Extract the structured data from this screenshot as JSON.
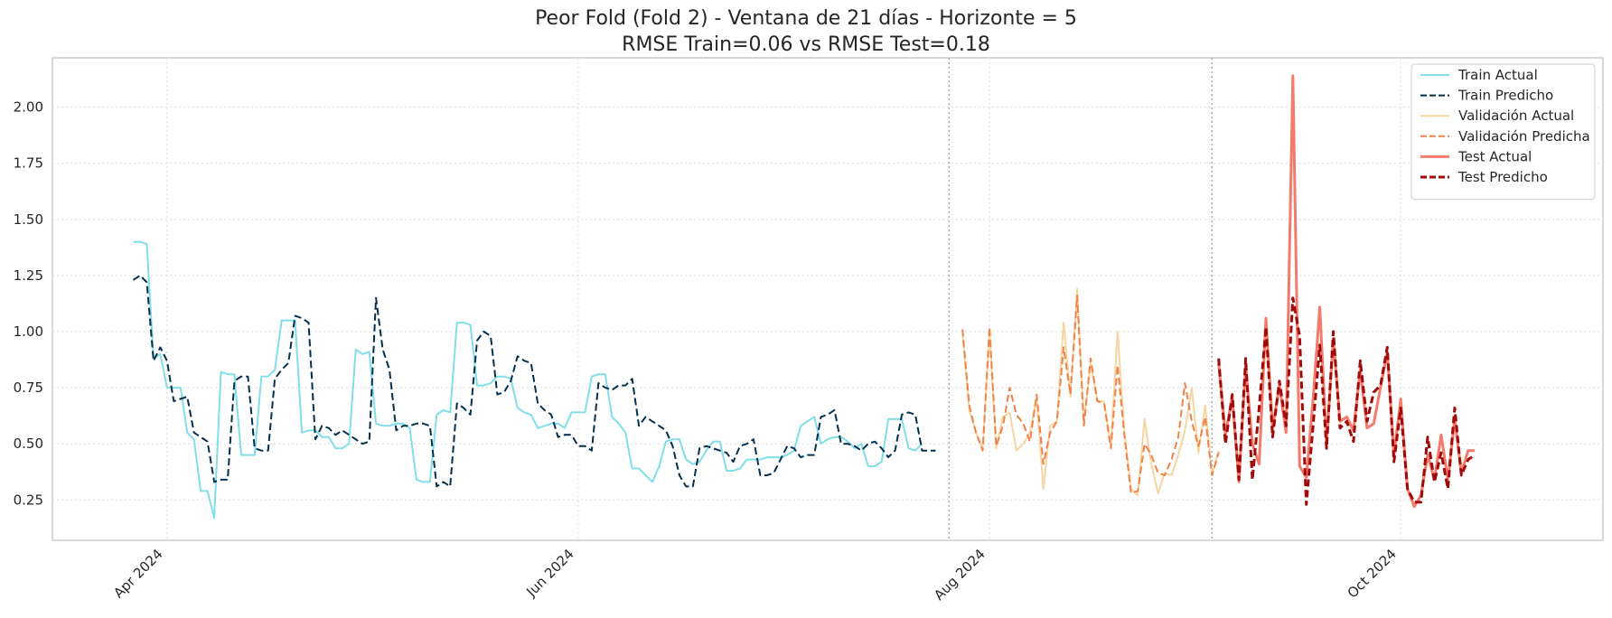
{
  "chart_data": {
    "type": "line",
    "title": "Peor Fold (Fold 2) - Ventana de 21 días - Horizonte = 5",
    "subtitle": "RMSE Train=0.06 vs RMSE Test=0.18",
    "xlabel": "",
    "ylabel": "",
    "x_type": "date",
    "xlim": [
      "2024-03-15",
      "2024-10-31"
    ],
    "ylim": [
      0.07,
      2.22
    ],
    "yticks": [
      0.25,
      0.5,
      0.75,
      1.0,
      1.25,
      1.5,
      1.75,
      2.0
    ],
    "xticks": [
      {
        "date": "2024-04-01",
        "label": "Apr 2024"
      },
      {
        "date": "2024-06-01",
        "label": "Jun 2024"
      },
      {
        "date": "2024-08-01",
        "label": "Aug 2024"
      },
      {
        "date": "2024-10-01",
        "label": "Oct 2024"
      }
    ],
    "split_lines": [
      "2024-07-26",
      "2024-09-03"
    ],
    "grid": true,
    "legend_position": "top-right",
    "series": [
      {
        "name": "Train Actual",
        "color": "#80deea",
        "dash": "solid",
        "width": 2,
        "start": "2024-03-27",
        "values": [
          1.4,
          1.4,
          1.39,
          0.88,
          0.9,
          0.75,
          0.75,
          0.75,
          0.55,
          0.52,
          0.29,
          0.29,
          0.17,
          0.82,
          0.81,
          0.81,
          0.45,
          0.45,
          0.45,
          0.8,
          0.8,
          0.83,
          1.05,
          1.05,
          1.05,
          0.55,
          0.56,
          0.56,
          0.53,
          0.53,
          0.48,
          0.48,
          0.5,
          0.92,
          0.9,
          0.91,
          0.59,
          0.58,
          0.58,
          0.59,
          0.59,
          0.57,
          0.34,
          0.33,
          0.33,
          0.63,
          0.65,
          0.64,
          1.04,
          1.04,
          1.03,
          0.76,
          0.76,
          0.77,
          0.8,
          0.8,
          0.79,
          0.66,
          0.64,
          0.63,
          0.57,
          0.58,
          0.59,
          0.59,
          0.57,
          0.64,
          0.64,
          0.64,
          0.8,
          0.81,
          0.81,
          0.62,
          0.59,
          0.55,
          0.39,
          0.39,
          0.36,
          0.33,
          0.4,
          0.51,
          0.52,
          0.52,
          0.43,
          0.41,
          0.42,
          0.47,
          0.51,
          0.51,
          0.38,
          0.38,
          0.39,
          0.43,
          0.43,
          0.43,
          0.44,
          0.44,
          0.44,
          0.45,
          0.47,
          0.58,
          0.6,
          0.62,
          0.5,
          0.52,
          0.53,
          0.53,
          0.51,
          0.48,
          0.5,
          0.4,
          0.4,
          0.42,
          0.61,
          0.61,
          0.61,
          0.48,
          0.47,
          0.5
        ]
      },
      {
        "name": "Train Predicho",
        "color": "#04304f",
        "dash": "dashed",
        "width": 2,
        "start": "2024-03-27",
        "values": [
          1.23,
          1.25,
          1.22,
          0.87,
          0.93,
          0.87,
          0.69,
          0.7,
          0.71,
          0.55,
          0.53,
          0.51,
          0.33,
          0.34,
          0.34,
          0.78,
          0.8,
          0.8,
          0.48,
          0.47,
          0.47,
          0.79,
          0.83,
          0.86,
          1.07,
          1.06,
          1.04,
          0.52,
          0.58,
          0.57,
          0.54,
          0.56,
          0.54,
          0.52,
          0.5,
          0.51,
          1.15,
          0.92,
          0.83,
          0.56,
          0.58,
          0.58,
          0.59,
          0.59,
          0.58,
          0.31,
          0.33,
          0.31,
          0.68,
          0.66,
          0.63,
          0.96,
          1.0,
          0.98,
          0.72,
          0.73,
          0.78,
          0.89,
          0.87,
          0.86,
          0.68,
          0.65,
          0.63,
          0.53,
          0.54,
          0.54,
          0.49,
          0.49,
          0.47,
          0.77,
          0.75,
          0.74,
          0.76,
          0.76,
          0.79,
          0.58,
          0.62,
          0.6,
          0.58,
          0.56,
          0.49,
          0.36,
          0.31,
          0.31,
          0.48,
          0.49,
          0.48,
          0.47,
          0.46,
          0.42,
          0.49,
          0.5,
          0.52,
          0.36,
          0.36,
          0.37,
          0.43,
          0.49,
          0.48,
          0.44,
          0.45,
          0.45,
          0.62,
          0.63,
          0.65,
          0.5,
          0.5,
          0.49,
          0.47,
          0.5,
          0.51,
          0.48,
          0.44,
          0.47,
          0.63,
          0.64,
          0.63,
          0.47,
          0.47,
          0.47
        ]
      },
      {
        "name": "Validación Actual",
        "color": "#f5d5a0",
        "dash": "solid",
        "width": 2,
        "start": "2024-07-28",
        "values": [
          0.99,
          0.65,
          0.55,
          0.48,
          1.0,
          0.48,
          0.62,
          0.64,
          0.47,
          0.5,
          0.55,
          0.7,
          0.3,
          0.58,
          0.6,
          1.04,
          0.71,
          1.19,
          0.59,
          0.86,
          0.69,
          0.69,
          0.49,
          1.0,
          0.56,
          0.3,
          0.27,
          0.61,
          0.41,
          0.28,
          0.37,
          0.36,
          0.45,
          0.56,
          0.75,
          0.46,
          0.67,
          0.36,
          0.47
        ]
      },
      {
        "name": "Validación Predicha",
        "color": "#f2824a",
        "dash": "dashed",
        "width": 2,
        "start": "2024-07-28",
        "values": [
          1.01,
          0.67,
          0.55,
          0.47,
          1.02,
          0.49,
          0.58,
          0.75,
          0.63,
          0.59,
          0.51,
          0.72,
          0.41,
          0.55,
          0.6,
          0.93,
          0.72,
          1.16,
          0.58,
          0.88,
          0.69,
          0.68,
          0.48,
          0.85,
          0.54,
          0.28,
          0.29,
          0.5,
          0.45,
          0.37,
          0.36,
          0.43,
          0.53,
          0.77,
          0.6,
          0.49,
          0.62,
          0.36,
          0.46
        ]
      },
      {
        "name": "Test Actual",
        "color": "#f47a6a",
        "dash": "solid",
        "width": 3,
        "start": "2024-09-04",
        "values": [
          0.86,
          0.54,
          0.71,
          0.33,
          0.85,
          0.5,
          0.41,
          1.06,
          0.57,
          0.76,
          0.55,
          2.14,
          0.4,
          0.35,
          0.7,
          1.11,
          0.5,
          0.97,
          0.6,
          0.62,
          0.56,
          0.83,
          0.57,
          0.59,
          0.75,
          0.91,
          0.45,
          0.7,
          0.3,
          0.22,
          0.27,
          0.45,
          0.34,
          0.54,
          0.34,
          0.61,
          0.37,
          0.47,
          0.47
        ]
      },
      {
        "name": "Test Predicho",
        "color": "#a00a0a",
        "dash": "dashed",
        "width": 3,
        "start": "2024-09-04",
        "values": [
          0.88,
          0.5,
          0.72,
          0.34,
          0.88,
          0.34,
          0.66,
          1.02,
          0.53,
          0.78,
          0.58,
          1.15,
          0.98,
          0.23,
          0.58,
          0.94,
          0.48,
          1.0,
          0.57,
          0.6,
          0.51,
          0.87,
          0.6,
          0.73,
          0.76,
          0.93,
          0.42,
          0.66,
          0.3,
          0.24,
          0.24,
          0.53,
          0.33,
          0.46,
          0.3,
          0.66,
          0.36,
          0.43,
          0.45
        ]
      }
    ]
  }
}
